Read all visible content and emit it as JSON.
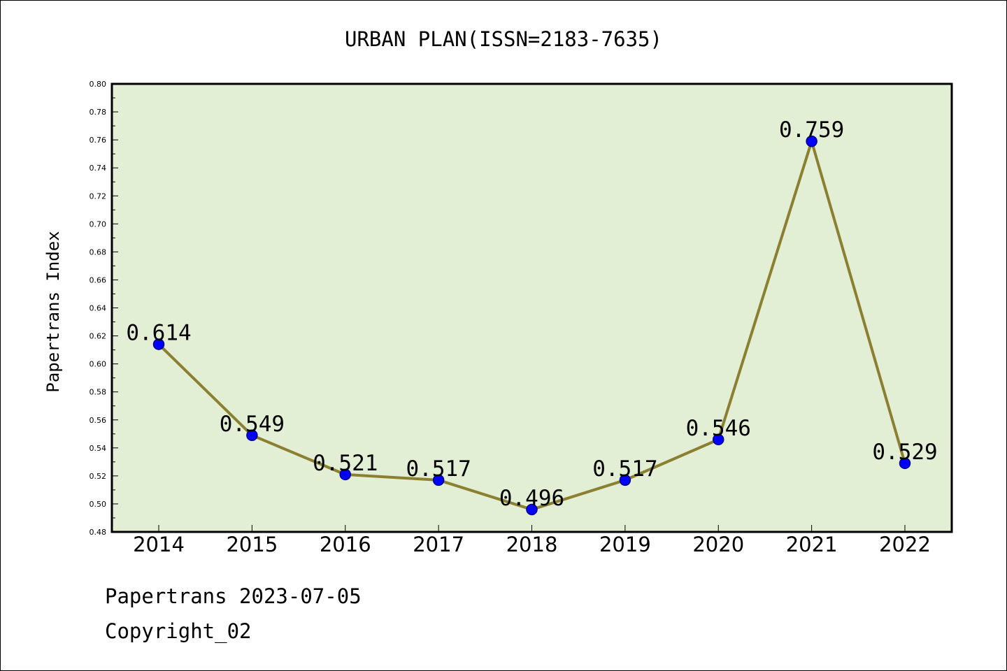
{
  "chart_data": {
    "type": "line",
    "title": "URBAN PLAN(ISSN=2183-7635)",
    "xlabel": "",
    "ylabel": "Papertrans Index",
    "categories": [
      "2014",
      "2015",
      "2016",
      "2017",
      "2018",
      "2019",
      "2020",
      "2021",
      "2022"
    ],
    "series": [
      {
        "values": [
          0.614,
          0.549,
          0.521,
          0.517,
          0.496,
          0.517,
          0.546,
          0.759,
          0.529
        ],
        "data_labels": [
          "0.614",
          "0.549",
          "0.521",
          "0.517",
          "0.496",
          "0.517",
          "0.546",
          "0.759",
          "0.529"
        ]
      }
    ],
    "ylim": [
      0.48,
      0.8
    ],
    "yticks": [
      "0.48",
      "0.50",
      "0.52",
      "0.54",
      "0.56",
      "0.58",
      "0.60",
      "0.62",
      "0.64",
      "0.66",
      "0.68",
      "0.70",
      "0.72",
      "0.74",
      "0.76",
      "0.78",
      "0.80"
    ],
    "grid": false,
    "legend": "none",
    "colors": {
      "plot_background": "#e2efd4",
      "line": "#8b8032",
      "marker_fill": "#0000ff",
      "marker_edge": "#00008b",
      "axis": "#000000"
    }
  },
  "footer": {
    "line1": "Papertrans 2023-07-05",
    "line2": "Copyright_02"
  }
}
